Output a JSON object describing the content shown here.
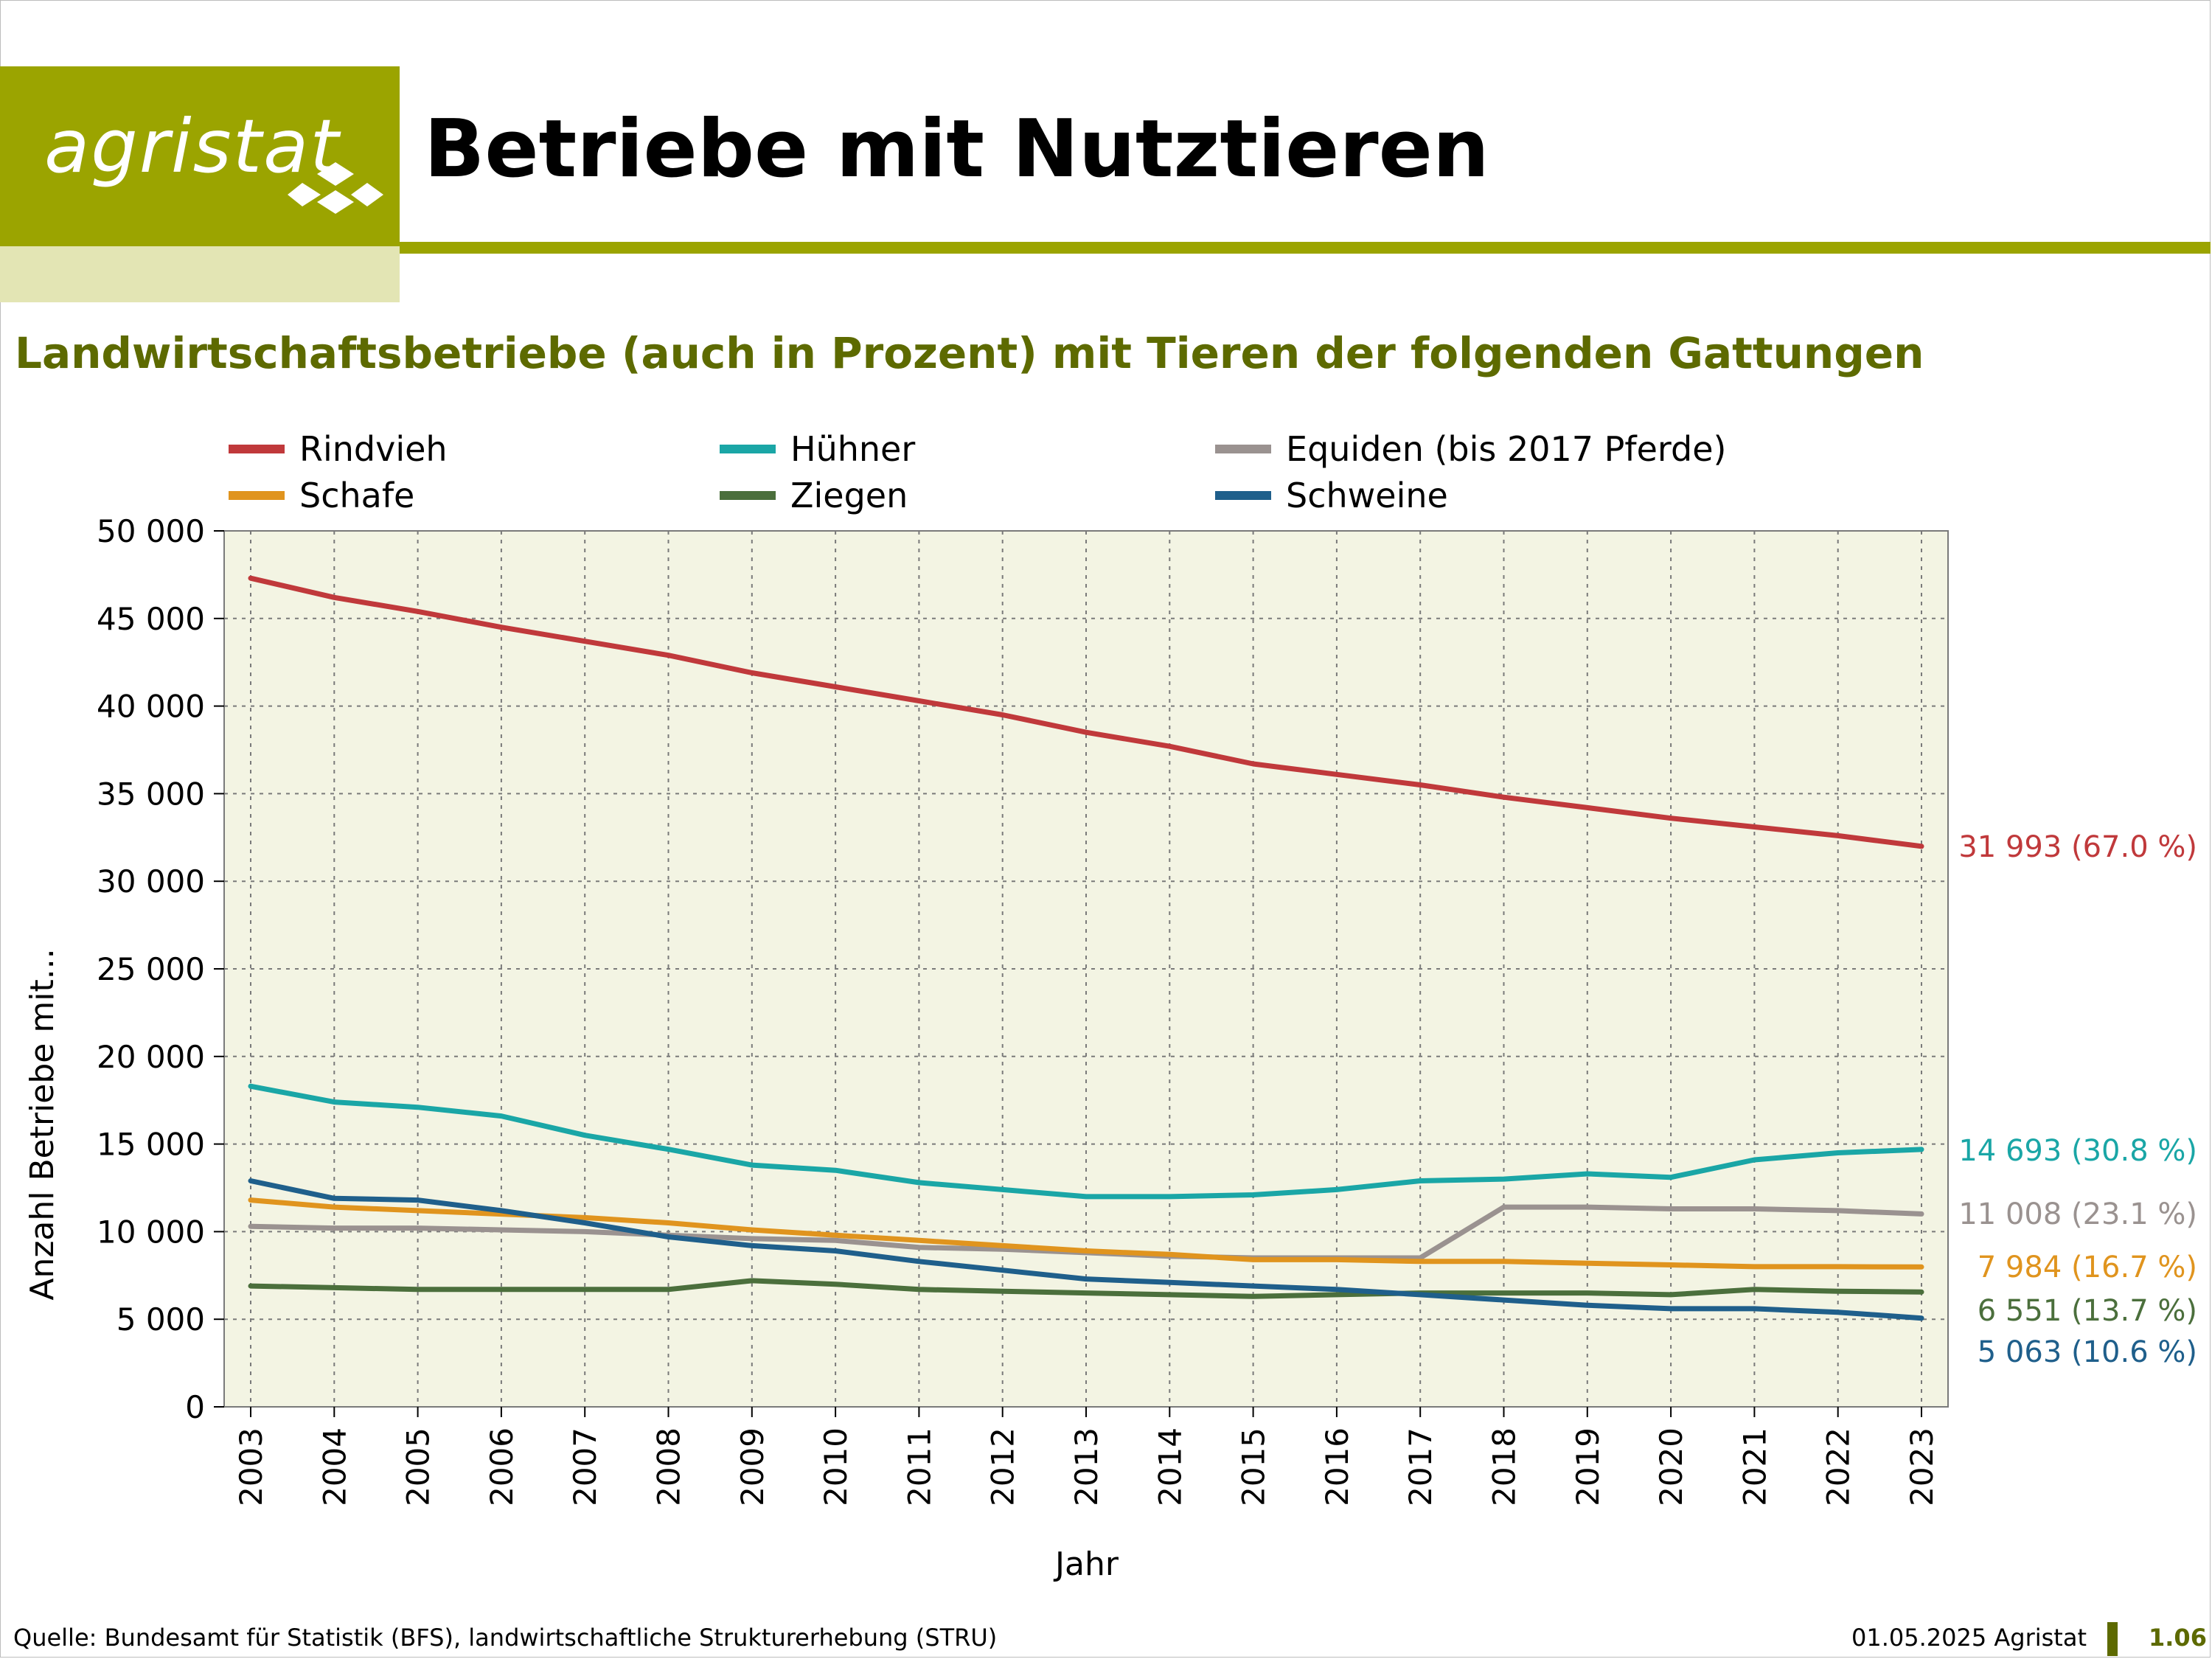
{
  "header": {
    "logo_text": "agristat",
    "title": "Betriebe mit Nutztieren",
    "subtitle": "Landwirtschaftsbetriebe (auch in Prozent) mit Tieren der folgenden Gattungen"
  },
  "footer": {
    "source": "Quelle: Bundesamt für Statistik (BFS), landwirtschaftliche Strukturerhebung (STRU)",
    "date": "01.05.2025 Agristat",
    "page": "1.06"
  },
  "colors": {
    "brand": "#9ba400",
    "brand_light": "#e3e5b4",
    "subtitle": "#5d6a00",
    "plot_bg": "#f3f4e3"
  },
  "chart_data": {
    "type": "line",
    "xlabel": "Jahr",
    "ylabel": "Anzahl Betriebe mit...",
    "ylim": [
      0,
      50000
    ],
    "yticks": [
      0,
      5000,
      10000,
      15000,
      20000,
      25000,
      30000,
      35000,
      40000,
      45000,
      50000
    ],
    "ytick_labels": [
      "0",
      "5 000",
      "10 000",
      "15 000",
      "20 000",
      "25 000",
      "30 000",
      "35 000",
      "40 000",
      "45 000",
      "50 000"
    ],
    "x": [
      2003,
      2004,
      2005,
      2006,
      2007,
      2008,
      2009,
      2010,
      2011,
      2012,
      2013,
      2014,
      2015,
      2016,
      2017,
      2018,
      2019,
      2020,
      2021,
      2022,
      2023
    ],
    "grid": true,
    "legend_position": "top",
    "series": [
      {
        "name": "Rindvieh",
        "color": "#c0393b",
        "end_label": "31 993 (67.0 %)",
        "values": [
          47300,
          46200,
          45400,
          44500,
          43700,
          42900,
          41900,
          41100,
          40300,
          39500,
          38500,
          37700,
          36700,
          36100,
          35500,
          34800,
          34200,
          33600,
          33100,
          32600,
          31993
        ]
      },
      {
        "name": "Hühner",
        "color": "#1aa6a6",
        "end_label": "14 693 (30.8 %)",
        "values": [
          18300,
          17400,
          17100,
          16600,
          15500,
          14700,
          13800,
          13500,
          12800,
          12400,
          12000,
          12000,
          12100,
          12400,
          12900,
          13000,
          13300,
          13100,
          14100,
          14500,
          14693
        ]
      },
      {
        "name": "Equiden (bis 2017 Pferde)",
        "color": "#9a9290",
        "end_label": "11 008 (23.1 %)",
        "values": [
          10300,
          10200,
          10200,
          10100,
          10000,
          9800,
          9600,
          9500,
          9100,
          9000,
          8800,
          8600,
          8500,
          8500,
          8500,
          11400,
          11400,
          11300,
          11300,
          11200,
          11008
        ]
      },
      {
        "name": "Schafe",
        "color": "#e0941e",
        "end_label": "7 984 (16.7 %)",
        "values": [
          11800,
          11400,
          11200,
          11000,
          10800,
          10500,
          10100,
          9800,
          9500,
          9200,
          8900,
          8700,
          8400,
          8400,
          8300,
          8300,
          8200,
          8100,
          8000,
          8000,
          7984
        ]
      },
      {
        "name": "Ziegen",
        "color": "#4b6f3c",
        "end_label": "6 551 (13.7 %)",
        "values": [
          6900,
          6800,
          6700,
          6700,
          6700,
          6700,
          7200,
          7000,
          6700,
          6600,
          6500,
          6400,
          6300,
          6400,
          6500,
          6500,
          6500,
          6400,
          6700,
          6600,
          6551
        ]
      },
      {
        "name": "Schweine",
        "color": "#1f5f8b",
        "end_label": "5 063 (10.6 %)",
        "values": [
          12900,
          11900,
          11800,
          11200,
          10500,
          9700,
          9200,
          8900,
          8300,
          7800,
          7300,
          7100,
          6900,
          6700,
          6400,
          6100,
          5800,
          5600,
          5600,
          5400,
          5063
        ]
      }
    ]
  }
}
